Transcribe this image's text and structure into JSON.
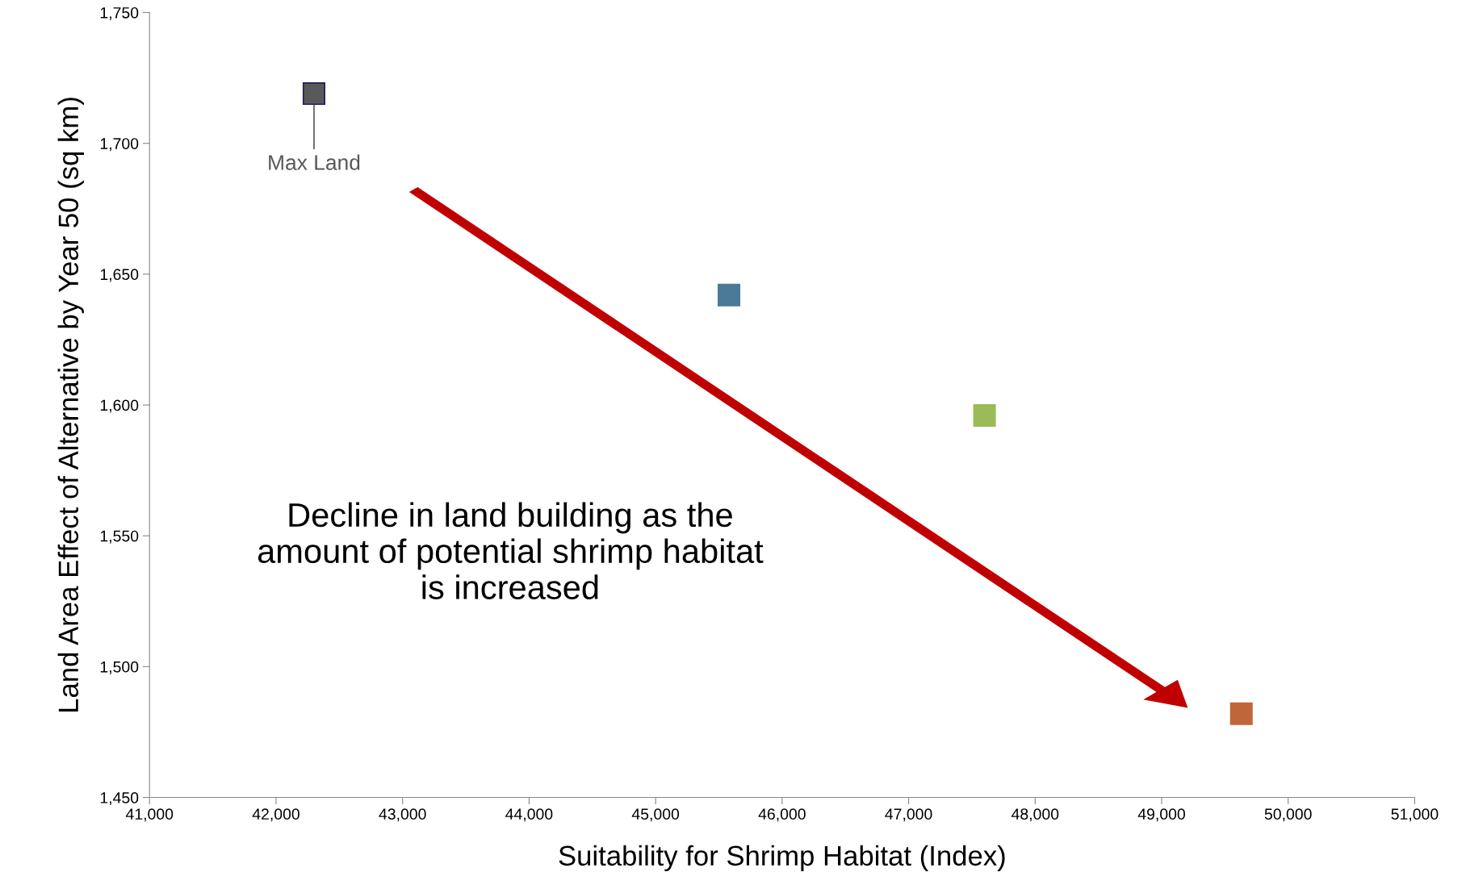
{
  "chart_data": {
    "type": "scatter",
    "xlabel": "Suitability for Shrimp Habitat (Index)",
    "ylabel": "Land Area Effect of Alternative by Year 50 (sq km)",
    "x": [
      42300,
      45580,
      47600,
      49630
    ],
    "values": [
      1719,
      1642,
      1596,
      1482
    ],
    "colors": [
      "#595959",
      "#4a7a96",
      "#9bbb59",
      "#c0663a"
    ],
    "marker": "square",
    "grid": false,
    "legend": false,
    "xlim": [
      41000,
      51000
    ],
    "xticks": [
      {
        "value": 41000,
        "label": "41,000"
      },
      {
        "value": 42000,
        "label": "42,000"
      },
      {
        "value": 43000,
        "label": "43,000"
      },
      {
        "value": 44000,
        "label": "44,000"
      },
      {
        "value": 45000,
        "label": "45,000"
      },
      {
        "value": 46000,
        "label": "46,000"
      },
      {
        "value": 47000,
        "label": "47,000"
      },
      {
        "value": 48000,
        "label": "48,000"
      },
      {
        "value": 49000,
        "label": "49,000"
      },
      {
        "value": 50000,
        "label": "50,000"
      },
      {
        "value": 51000,
        "label": "51,000"
      }
    ],
    "ylim": [
      1450,
      1750
    ],
    "yticks": [
      {
        "value": 1450,
        "label": "1,450"
      },
      {
        "value": 1500,
        "label": "1,500"
      },
      {
        "value": 1550,
        "label": "1,550"
      },
      {
        "value": 1600,
        "label": "1,600"
      },
      {
        "value": 1650,
        "label": "1,650"
      },
      {
        "value": 1700,
        "label": "1,700"
      },
      {
        "value": 1750,
        "label": "1,750"
      }
    ],
    "annotations": [
      {
        "text": "Max Land",
        "x": 42300,
        "y": 1719
      },
      "Decline in land building as the\namount of potential shrimp habitat\nis increased"
    ]
  }
}
